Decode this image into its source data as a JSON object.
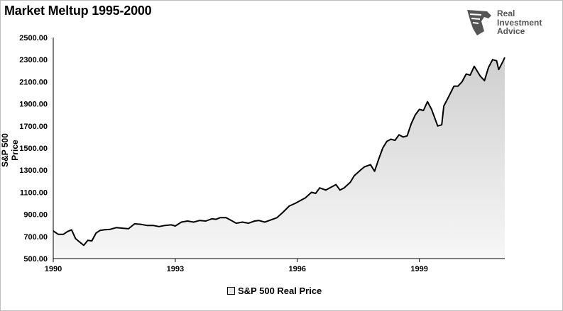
{
  "title": "Market Meltup 1995-2000",
  "logo": {
    "line1": "Real",
    "line2": "Investment",
    "line3": "Advice",
    "icon": "eagle-head-icon"
  },
  "chart_data": {
    "type": "area",
    "ylabel": "S&P 500 Price",
    "xlabel": "",
    "ylim": [
      500,
      2500
    ],
    "xlim": [
      1990.0,
      2001.1
    ],
    "y_ticks": [
      "500.00",
      "700.00",
      "900.00",
      "1100.00",
      "1300.00",
      "1500.00",
      "1700.00",
      "1900.00",
      "2100.00",
      "2300.00",
      "2500.00"
    ],
    "x_ticks": [
      {
        "label": "1990",
        "value": 1990
      },
      {
        "label": "1993",
        "value": 1993
      },
      {
        "label": "1996",
        "value": 1996
      },
      {
        "label": "1999",
        "value": 1999
      }
    ],
    "grid": false,
    "legend": "bottom",
    "series": [
      {
        "name": "S&P 500 Real Price",
        "color": "#000000",
        "fill": "#e6e6e6",
        "x": [
          1990.0,
          1990.12,
          1990.25,
          1990.35,
          1990.45,
          1990.55,
          1990.65,
          1990.75,
          1990.85,
          1990.95,
          1991.05,
          1991.15,
          1991.25,
          1991.4,
          1991.55,
          1991.7,
          1991.85,
          1992.0,
          1992.15,
          1992.3,
          1992.45,
          1992.6,
          1992.75,
          1992.9,
          1993.0,
          1993.15,
          1993.3,
          1993.45,
          1993.6,
          1993.75,
          1993.9,
          1994.0,
          1994.1,
          1994.25,
          1994.35,
          1994.5,
          1994.65,
          1994.8,
          1994.95,
          1995.05,
          1995.2,
          1995.35,
          1995.5,
          1995.65,
          1995.8,
          1995.95,
          1996.05,
          1996.2,
          1996.35,
          1996.45,
          1996.55,
          1996.7,
          1996.85,
          1996.95,
          1997.05,
          1997.15,
          1997.3,
          1997.4,
          1997.55,
          1997.65,
          1997.8,
          1997.9,
          1998.0,
          1998.1,
          1998.2,
          1998.3,
          1998.4,
          1998.5,
          1998.6,
          1998.7,
          1998.8,
          1998.9,
          1999.0,
          1999.1,
          1999.2,
          1999.3,
          1999.45,
          1999.55,
          1999.6,
          1999.7,
          1999.85,
          1999.95,
          2000.05,
          2000.15,
          2000.25,
          2000.35,
          2000.5,
          2000.6,
          2000.7,
          2000.8,
          2000.9,
          2000.95,
          2001.05,
          2001.1
        ],
        "values": [
          750,
          720,
          720,
          745,
          760,
          680,
          650,
          620,
          665,
          660,
          730,
          755,
          760,
          765,
          780,
          775,
          770,
          815,
          810,
          800,
          800,
          790,
          800,
          805,
          795,
          830,
          840,
          830,
          845,
          840,
          860,
          855,
          870,
          870,
          850,
          820,
          830,
          820,
          840,
          845,
          830,
          850,
          870,
          920,
          975,
          1000,
          1020,
          1050,
          1100,
          1090,
          1140,
          1120,
          1150,
          1170,
          1120,
          1140,
          1190,
          1250,
          1300,
          1330,
          1350,
          1290,
          1400,
          1500,
          1560,
          1580,
          1570,
          1620,
          1600,
          1610,
          1720,
          1800,
          1850,
          1840,
          1920,
          1850,
          1700,
          1710,
          1880,
          1950,
          2060,
          2060,
          2100,
          2170,
          2160,
          2240,
          2150,
          2110,
          2230,
          2300,
          2290,
          2210,
          2280,
          2320
        ]
      }
    ]
  }
}
